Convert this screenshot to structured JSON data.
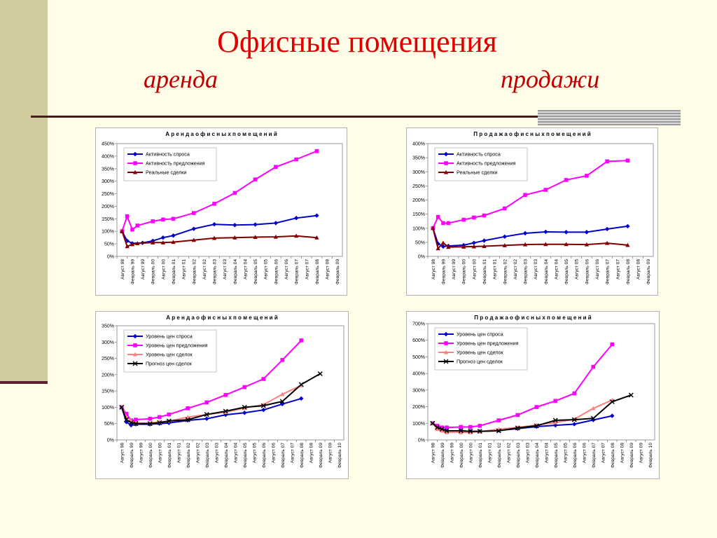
{
  "slide": {
    "title": "Офисные помещения",
    "left_heading": "аренда",
    "right_heading": "продажи"
  },
  "colors": {
    "background": "#fffde8",
    "left_band": "#cfcb9d",
    "title": "#e00000",
    "series_blue": "#0000cc",
    "series_magenta": "#ff00ff",
    "series_brown": "#800000",
    "series_salmon": "#ff8080",
    "series_black": "#000000"
  },
  "chart_data": [
    {
      "type": "line",
      "title": "А р е н д а   о ф и с н ы х   п о м е щ е н и й",
      "ylim": [
        0,
        450
      ],
      "ytick_step": 50,
      "ytick_suffix": "%",
      "x_categories": [
        "Август 98",
        "Февраль 99",
        "Август 99",
        "Февраль 00",
        "Август 00",
        "Февраль 01",
        "Август 01",
        "Февраль 02",
        "Август 02",
        "Февраль 03",
        "Август 03",
        "Февраль 04",
        "Август 04",
        "Февраль 05",
        "Август 05",
        "Февраль 06",
        "Август 06",
        "Февраль 07",
        "Август 07",
        "Февраль 08",
        "Август 08",
        "Февраль 09"
      ],
      "legend_position": "top-left",
      "series": [
        {
          "name": "Активность спроса",
          "color": "#0000cc",
          "marker": "diamond",
          "x": [
            0,
            0.5,
            1,
            2,
            3,
            4,
            5,
            7,
            9,
            11,
            13,
            15,
            17,
            19
          ],
          "y": [
            100,
            62,
            52,
            54,
            62,
            75,
            83,
            110,
            128,
            125,
            127,
            133,
            153,
            163
          ]
        },
        {
          "name": "Активность предложения",
          "color": "#ff00ff",
          "marker": "square",
          "x": [
            0,
            0.5,
            1,
            1.5,
            3,
            4,
            5,
            7,
            9,
            11,
            13,
            15,
            17,
            19
          ],
          "y": [
            100,
            160,
            107,
            123,
            140,
            147,
            150,
            173,
            210,
            253,
            307,
            357,
            387,
            420
          ]
        },
        {
          "name": "Реальные сделки",
          "color": "#800000",
          "marker": "triangle",
          "x": [
            0,
            0.5,
            1,
            1.5,
            3,
            4,
            5,
            7,
            9,
            11,
            13,
            15,
            17,
            19
          ],
          "y": [
            100,
            40,
            48,
            52,
            55,
            55,
            57,
            65,
            73,
            75,
            77,
            78,
            82,
            75
          ]
        }
      ]
    },
    {
      "type": "line",
      "title": "П р о д а ж а   о ф и с н ы х   п о м е щ е н и й",
      "ylim": [
        0,
        400
      ],
      "ytick_step": 50,
      "ytick_suffix": "%",
      "x_categories": [
        "Август 98",
        "Февраль 99",
        "Август 99",
        "Февраль 00",
        "Август 00",
        "Февраль 01",
        "Август 01",
        "Февраль 02",
        "Август 02",
        "Февраль 03",
        "Август 03",
        "Февраль 04",
        "Август 04",
        "Февраль 05",
        "Август 05",
        "Февраль 06",
        "Август 06",
        "Февраль 07",
        "Август 07",
        "Февраль 08",
        "Август 08",
        "Февраль 09"
      ],
      "legend_position": "top-left",
      "series": [
        {
          "name": "Активность спроса",
          "color": "#0000cc",
          "marker": "diamond",
          "x": [
            0,
            0.5,
            1,
            1.5,
            3,
            4,
            5,
            7,
            9,
            11,
            13,
            15,
            17,
            19
          ],
          "y": [
            100,
            45,
            35,
            37,
            40,
            48,
            56,
            70,
            82,
            87,
            86,
            86,
            97,
            107
          ]
        },
        {
          "name": "Активность предложения",
          "color": "#ff00ff",
          "marker": "square",
          "x": [
            0,
            0.5,
            1,
            1.5,
            3,
            4,
            5,
            7,
            9,
            11,
            13,
            15,
            17,
            19
          ],
          "y": [
            100,
            140,
            118,
            118,
            130,
            138,
            145,
            170,
            218,
            236,
            271,
            286,
            337,
            340
          ]
        },
        {
          "name": "Реальные сделки",
          "color": "#800000",
          "marker": "triangle",
          "x": [
            0,
            0.5,
            1,
            1.5,
            3,
            4,
            5,
            7,
            9,
            11,
            13,
            15,
            17,
            19
          ],
          "y": [
            100,
            28,
            48,
            33,
            34,
            35,
            36,
            39,
            42,
            43,
            43,
            42,
            47,
            40
          ]
        }
      ]
    },
    {
      "type": "line",
      "title": "А р е н д а   о ф и с н ы х   п о м е щ е н и й",
      "ylim": [
        0,
        350
      ],
      "ytick_step": 50,
      "ytick_suffix": "%",
      "x_categories": [
        "Август 98",
        "Февраль 99",
        "Август 99",
        "Февраль 00",
        "Август 00",
        "Февраль 01",
        "Август 01",
        "Февраль 02",
        "Август 02",
        "Февраль 03",
        "Август 03",
        "Февраль 04",
        "Август 04",
        "Февраль 05",
        "Август 05",
        "Февраль 06",
        "Август 06",
        "Февраль 07",
        "Август 07",
        "Февраль 08",
        "Август 08",
        "Февраль 09",
        "Август 09",
        "Февраль 10"
      ],
      "legend_position": "top-left",
      "series": [
        {
          "name": "Уровень цен спроса",
          "color": "#0000cc",
          "marker": "diamond",
          "x": [
            0,
            0.5,
            1,
            1.5,
            3,
            4,
            5,
            7,
            9,
            11,
            13,
            15,
            17,
            19
          ],
          "y": [
            100,
            55,
            45,
            48,
            48,
            50,
            52,
            60,
            65,
            77,
            83,
            92,
            110,
            127
          ]
        },
        {
          "name": "Уровень цен предложения",
          "color": "#ff00ff",
          "marker": "square",
          "x": [
            0,
            0.5,
            1,
            1.5,
            3,
            4,
            5,
            7,
            9,
            11,
            13,
            15,
            17,
            19
          ],
          "y": [
            100,
            80,
            60,
            62,
            65,
            70,
            78,
            97,
            115,
            138,
            162,
            187,
            245,
            305
          ]
        },
        {
          "name": "Уровень цен сделок",
          "color": "#ff8080",
          "marker": "triangle",
          "x": [
            0,
            0.5,
            1,
            1.5,
            3,
            4,
            5,
            7,
            9,
            11,
            13,
            15,
            17,
            19
          ],
          "y": [
            100,
            70,
            60,
            52,
            52,
            55,
            58,
            70,
            78,
            85,
            98,
            108,
            140,
            167
          ]
        },
        {
          "name": "Прогноз цен сделок",
          "color": "#000000",
          "marker": "x",
          "x": [
            0,
            0.5,
            1,
            1.5,
            3,
            4,
            5,
            7,
            9,
            11,
            13,
            15,
            17,
            19,
            21
          ],
          "y": [
            100,
            62,
            53,
            50,
            50,
            53,
            58,
            62,
            78,
            88,
            100,
            105,
            118,
            170,
            203
          ]
        }
      ]
    },
    {
      "type": "line",
      "title": "П р о д а ж а   о ф и с н ы х   п о м е щ е н и й",
      "ylim": [
        0,
        700
      ],
      "ytick_step": 100,
      "ytick_suffix": "%",
      "x_categories": [
        "Август 98",
        "Февраль 99",
        "Август 99",
        "Февраль 00",
        "Август 00",
        "Февраль 01",
        "Август 01",
        "Февраль 02",
        "Август 02",
        "Февраль 03",
        "Август 03",
        "Февраль 04",
        "Август 04",
        "Февраль 05",
        "Август 05",
        "Февраль 06",
        "Август 06",
        "Февраль 07",
        "Август 07",
        "Февраль 08",
        "Август 08",
        "Февраль 09",
        "Август 09",
        "Февраль 10"
      ],
      "legend_position": "top-left",
      "series": [
        {
          "name": "Уровень цен спроса",
          "color": "#0000cc",
          "marker": "diamond",
          "x": [
            0,
            0.5,
            1,
            1.5,
            3,
            4,
            5,
            7,
            9,
            11,
            13,
            15,
            17,
            19
          ],
          "y": [
            100,
            75,
            65,
            55,
            55,
            52,
            52,
            57,
            68,
            80,
            88,
            95,
            120,
            145
          ]
        },
        {
          "name": "Уровень цен предложения",
          "color": "#ff00ff",
          "marker": "square",
          "x": [
            0,
            0.5,
            1,
            1.5,
            3,
            4,
            5,
            7,
            9,
            11,
            13,
            15,
            17,
            19
          ],
          "y": [
            100,
            85,
            75,
            75,
            78,
            78,
            85,
            118,
            150,
            198,
            235,
            280,
            440,
            575
          ]
        },
        {
          "name": "Уровень цен сделок",
          "color": "#ff8080",
          "marker": "triangle",
          "x": [
            0,
            0.5,
            1,
            1.5,
            3,
            4,
            5,
            7,
            9,
            11,
            13,
            15,
            17,
            19
          ],
          "y": [
            100,
            65,
            55,
            45,
            45,
            45,
            50,
            65,
            75,
            90,
            105,
            125,
            190,
            240
          ]
        },
        {
          "name": "Прогноз цен сделок",
          "color": "#000000",
          "marker": "x",
          "x": [
            0,
            0.5,
            1,
            1.5,
            3,
            4,
            5,
            7,
            9,
            11,
            13,
            15,
            17,
            19,
            21
          ],
          "y": [
            100,
            75,
            65,
            55,
            55,
            52,
            52,
            55,
            72,
            85,
            118,
            122,
            130,
            230,
            270
          ]
        }
      ]
    }
  ]
}
